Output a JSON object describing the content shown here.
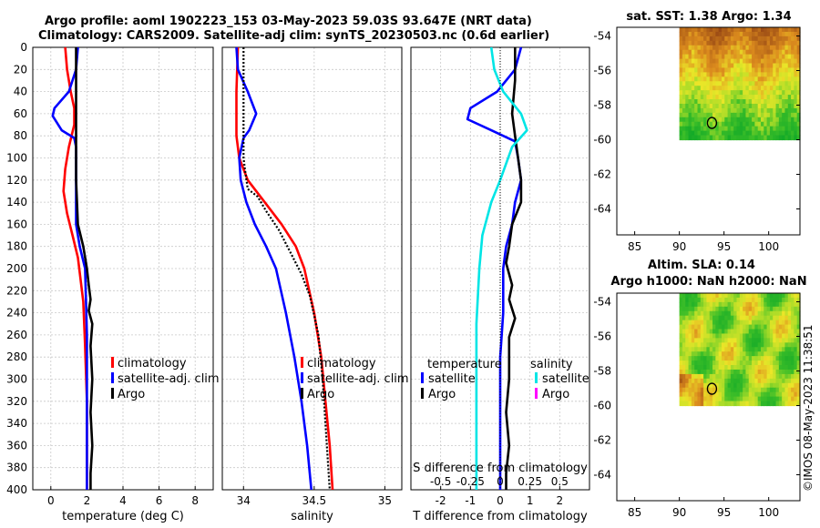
{
  "titles": {
    "line1": "Argo profile: aoml 1902223_153 03-May-2023 59.03S 93.647E (NRT data)",
    "line2": "Climatology: CARS2009. Satellite-adj clim: synTS_20230503.nc (0.6d earlier)"
  },
  "colors": {
    "climatology": "#ff0000",
    "satellite": "#0000ff",
    "argo": "#000000",
    "sat_salinity": "#00e5e5",
    "argo_salinity": "#ff00ff"
  },
  "credit": "©IMOS 08-May-2023 11:38:51",
  "chart_data": [
    {
      "id": "temperature",
      "type": "line",
      "xlabel": "temperature (deg C)",
      "ylabel": "",
      "xlim": [
        -1,
        9
      ],
      "ylim": [
        400,
        0
      ],
      "xticks": [
        0,
        2,
        4,
        6,
        8
      ],
      "yticks": [
        0,
        20,
        40,
        60,
        80,
        100,
        120,
        140,
        160,
        180,
        200,
        220,
        240,
        260,
        280,
        300,
        320,
        340,
        360,
        380,
        400
      ],
      "grid": true,
      "legend": {
        "placement": "lower-right",
        "entries": [
          "climatology",
          "satellite-adj. clim",
          "Argo"
        ]
      },
      "series": [
        {
          "name": "climatology",
          "color": "#ff0000",
          "points": [
            [
              0.8,
              0
            ],
            [
              0.9,
              20
            ],
            [
              1.1,
              40
            ],
            [
              1.3,
              55
            ],
            [
              1.3,
              70
            ],
            [
              1.0,
              90
            ],
            [
              0.8,
              110
            ],
            [
              0.7,
              130
            ],
            [
              0.9,
              150
            ],
            [
              1.2,
              170
            ],
            [
              1.5,
              190
            ],
            [
              1.8,
              230
            ],
            [
              1.9,
              270
            ],
            [
              2.0,
              320
            ],
            [
              2.0,
              400
            ]
          ]
        },
        {
          "name": "satellite-adj. clim",
          "color": "#0000ff",
          "points": [
            [
              1.5,
              0
            ],
            [
              1.4,
              20
            ],
            [
              1.0,
              40
            ],
            [
              0.2,
              55
            ],
            [
              0.1,
              62
            ],
            [
              0.6,
              75
            ],
            [
              1.3,
              82
            ],
            [
              1.4,
              90
            ],
            [
              1.4,
              120
            ],
            [
              1.4,
              160
            ],
            [
              1.6,
              180
            ],
            [
              1.9,
              200
            ],
            [
              2.0,
              260
            ],
            [
              2.0,
              330
            ],
            [
              2.0,
              400
            ]
          ]
        },
        {
          "name": "Argo",
          "color": "#000000",
          "points": [
            [
              1.4,
              0
            ],
            [
              1.4,
              40
            ],
            [
              1.4,
              80
            ],
            [
              1.4,
              120
            ],
            [
              1.5,
              160
            ],
            [
              1.8,
              180
            ],
            [
              2.0,
              200
            ],
            [
              2.1,
              215
            ],
            [
              2.2,
              228
            ],
            [
              2.1,
              238
            ],
            [
              2.3,
              250
            ],
            [
              2.2,
              270
            ],
            [
              2.3,
              300
            ],
            [
              2.2,
              330
            ],
            [
              2.3,
              360
            ],
            [
              2.2,
              385
            ],
            [
              2.2,
              400
            ]
          ]
        }
      ]
    },
    {
      "id": "salinity",
      "type": "line",
      "xlabel": "salinity",
      "ylabel": "",
      "xlim": [
        33.85,
        35.12
      ],
      "ylim": [
        400,
        0
      ],
      "xticks": [
        34,
        34.5,
        35
      ],
      "xtick_labels": [
        "34",
        "34.5",
        "35"
      ],
      "grid": true,
      "legend": {
        "placement": "lower-right",
        "entries": [
          "climatology",
          "satellite-adj. clim",
          "Argo"
        ]
      },
      "series": [
        {
          "name": "climatology",
          "color": "#ff0000",
          "points": [
            [
              33.96,
              0
            ],
            [
              33.95,
              40
            ],
            [
              33.95,
              80
            ],
            [
              33.97,
              100
            ],
            [
              34.03,
              120
            ],
            [
              34.15,
              140
            ],
            [
              34.27,
              160
            ],
            [
              34.37,
              180
            ],
            [
              34.43,
              200
            ],
            [
              34.5,
              240
            ],
            [
              34.55,
              280
            ],
            [
              34.58,
              320
            ],
            [
              34.61,
              360
            ],
            [
              34.63,
              400
            ]
          ]
        },
        {
          "name": "satellite-adj. clim",
          "color": "#0000ff",
          "points": [
            [
              33.95,
              0
            ],
            [
              33.96,
              20
            ],
            [
              34.03,
              40
            ],
            [
              34.09,
              60
            ],
            [
              34.04,
              75
            ],
            [
              34.0,
              82
            ],
            [
              33.97,
              100
            ],
            [
              33.98,
              120
            ],
            [
              34.02,
              140
            ],
            [
              34.08,
              160
            ],
            [
              34.16,
              180
            ],
            [
              34.23,
              200
            ],
            [
              34.3,
              240
            ],
            [
              34.36,
              280
            ],
            [
              34.41,
              320
            ],
            [
              34.45,
              360
            ],
            [
              34.48,
              400
            ]
          ]
        },
        {
          "name": "Argo",
          "color": "#000000",
          "dashed": true,
          "points": [
            [
              34.0,
              0
            ],
            [
              34.0,
              40
            ],
            [
              34.0,
              80
            ],
            [
              34.0,
              100
            ],
            [
              34.01,
              110
            ],
            [
              34.03,
              128
            ],
            [
              34.1,
              135
            ],
            [
              34.16,
              148
            ],
            [
              34.25,
              165
            ],
            [
              34.33,
              185
            ],
            [
              34.41,
              205
            ],
            [
              34.47,
              225
            ],
            [
              34.53,
              260
            ],
            [
              34.56,
              300
            ],
            [
              34.58,
              340
            ],
            [
              34.6,
              380
            ],
            [
              34.61,
              400
            ]
          ]
        }
      ]
    },
    {
      "id": "difference",
      "type": "line",
      "xlabel": "T difference from climatology",
      "top_label": "S difference from climatology",
      "xlim": [
        -3,
        3
      ],
      "ylim": [
        400,
        0
      ],
      "xticks": [
        -2,
        -1,
        0,
        1,
        2
      ],
      "top_ticks": [
        "-0.5",
        "-0.25",
        "0",
        "0.25",
        "0.5"
      ],
      "top_tick_values": [
        -2,
        -1,
        0,
        1,
        2
      ],
      "grid": true,
      "legend": {
        "placement": "lower-center",
        "temperature_header": "temperature",
        "salinity_header": "salinity",
        "temperature_entries": [
          "satellite",
          "Argo"
        ],
        "salinity_entries": [
          "satellite",
          "Argo"
        ]
      },
      "series": [
        {
          "name": "temperature satellite",
          "color": "#0000ff",
          "points": [
            [
              0.7,
              0
            ],
            [
              0.5,
              20
            ],
            [
              -0.1,
              40
            ],
            [
              -1.0,
              55
            ],
            [
              -1.1,
              65
            ],
            [
              -0.3,
              75
            ],
            [
              0.5,
              85
            ],
            [
              0.6,
              100
            ],
            [
              0.7,
              120
            ],
            [
              0.5,
              140
            ],
            [
              0.4,
              160
            ],
            [
              0.2,
              180
            ],
            [
              0.1,
              200
            ],
            [
              0.1,
              240
            ],
            [
              0.0,
              280
            ],
            [
              0.0,
              320
            ],
            [
              0.0,
              400
            ]
          ]
        },
        {
          "name": "temperature Argo",
          "color": "#000000",
          "points": [
            [
              0.5,
              0
            ],
            [
              0.5,
              30
            ],
            [
              0.4,
              60
            ],
            [
              0.5,
              80
            ],
            [
              0.6,
              100
            ],
            [
              0.7,
              120
            ],
            [
              0.7,
              140
            ],
            [
              0.4,
              160
            ],
            [
              0.3,
              180
            ],
            [
              0.2,
              195
            ],
            [
              0.4,
              215
            ],
            [
              0.3,
              228
            ],
            [
              0.5,
              245
            ],
            [
              0.3,
              262
            ],
            [
              0.3,
              300
            ],
            [
              0.2,
              330
            ],
            [
              0.3,
              360
            ],
            [
              0.2,
              385
            ],
            [
              0.2,
              400
            ]
          ]
        },
        {
          "name": "salinity satellite",
          "color": "#00e5e5",
          "points": [
            [
              -0.3,
              0
            ],
            [
              -0.2,
              20
            ],
            [
              0.1,
              40
            ],
            [
              0.7,
              60
            ],
            [
              0.9,
              75
            ],
            [
              0.4,
              90
            ],
            [
              0.0,
              120
            ],
            [
              -0.3,
              140
            ],
            [
              -0.6,
              170
            ],
            [
              -0.7,
              200
            ],
            [
              -0.8,
              250
            ],
            [
              -0.8,
              300
            ],
            [
              -0.8,
              350
            ],
            [
              -0.8,
              400
            ]
          ]
        }
      ]
    },
    {
      "id": "sst-map",
      "type": "heatmap",
      "title": "sat. SST: 1.38 Argo: 1.34",
      "xlim": [
        83,
        103.5
      ],
      "ylim": [
        -65.5,
        -53.5
      ],
      "xticks": [
        85,
        90,
        95,
        100
      ],
      "yticks": [
        -54,
        -56,
        -58,
        -60,
        -62,
        -64
      ],
      "data_extent": {
        "lon": [
          90,
          103.5
        ],
        "lat": [
          -60,
          -53.5
        ]
      },
      "marker": {
        "lon": 93.65,
        "lat": -59.03
      },
      "palette": "brown-orange-yellow-green"
    },
    {
      "id": "sla-map",
      "type": "heatmap",
      "title_line1": "Altim. SLA: 0.14",
      "title_line2": "Argo h1000: NaN h2000: NaN",
      "xlim": [
        83,
        103.5
      ],
      "ylim": [
        -65.5,
        -53.5
      ],
      "xticks": [
        85,
        90,
        95,
        100
      ],
      "yticks": [
        -54,
        -56,
        -58,
        -60,
        -62,
        -64
      ],
      "data_extent": {
        "lon": [
          90,
          103.5
        ],
        "lat": [
          -60,
          -53.5
        ]
      },
      "marker": {
        "lon": 93.65,
        "lat": -59.03
      },
      "palette": "orange-yellow-green"
    }
  ]
}
